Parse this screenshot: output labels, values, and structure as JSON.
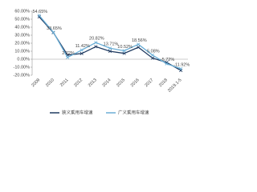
{
  "chart_data": {
    "type": "line",
    "categories": [
      "2009",
      "2010",
      "2011",
      "2012",
      "2013",
      "2014",
      "2015",
      "2016",
      "2017",
      "2018",
      "2019.1-5"
    ],
    "series": [
      {
        "name": "狭义乘用车增速",
        "color": "#1f3a60",
        "values": [
          52.9,
          33.2,
          5.2,
          7.1,
          15.7,
          9.9,
          7.3,
          14.9,
          1.4,
          -4.1,
          -14.0
        ]
      },
      {
        "name": "广义乘用车增速",
        "color": "#6aaed6",
        "values": [
          54.65,
          33.65,
          2.22,
          11.42,
          20.82,
          13.71,
          10.52,
          18.56,
          5.08,
          -5.72,
          -11.92
        ],
        "value_labels": [
          "54.65%",
          "33.65%",
          "2.22%",
          "11.42%",
          "20.82%",
          "13.71%",
          "10.52%",
          "18.56%",
          "5.08%",
          "-5.72%",
          "-11.92%"
        ]
      }
    ],
    "ylim": [
      -20,
      60
    ],
    "yticks": [
      {
        "value": -20,
        "label": "-20.00%"
      },
      {
        "value": -10,
        "label": "-10.00%"
      },
      {
        "value": 0,
        "label": "0.00%"
      },
      {
        "value": 10,
        "label": "10.00%"
      },
      {
        "value": 20,
        "label": "20.00%"
      },
      {
        "value": 30,
        "label": "30.00%"
      },
      {
        "value": 40,
        "label": "40.00%"
      },
      {
        "value": 50,
        "label": "50.00%"
      },
      {
        "value": 60,
        "label": "60.00%"
      }
    ],
    "grid": false,
    "legend": "bottom"
  }
}
